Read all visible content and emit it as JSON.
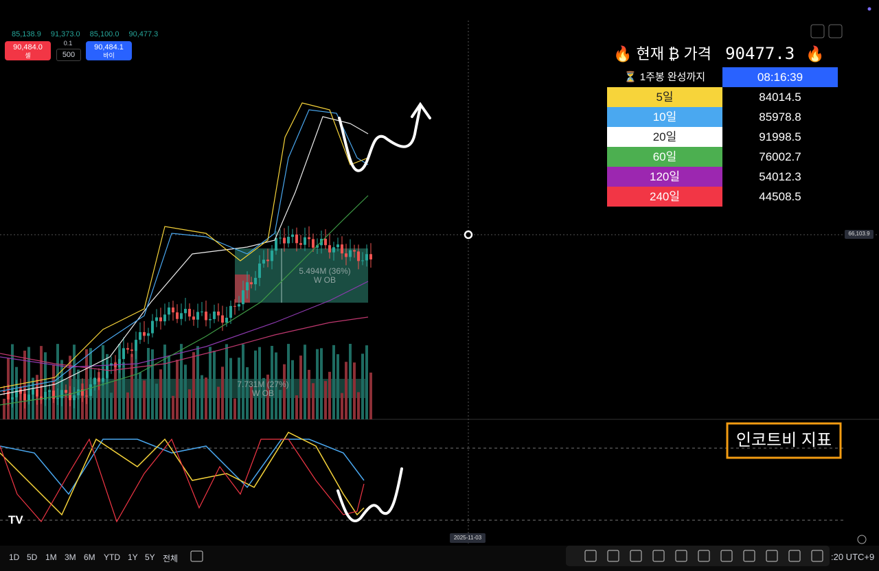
{
  "ohlc": [
    "85,138.9",
    "91,373.0",
    "85,100.0",
    "90,477.3"
  ],
  "order": {
    "sell_price": "90,484.0",
    "sell_label": "셀",
    "step": "0.1",
    "quantity": "500",
    "buy_price": "90,484.1",
    "buy_label": "바이"
  },
  "info_table": {
    "title": "🔥 현재 ₿ 가격",
    "price": "90477.3",
    "title_icon": "🔥",
    "countdown_label": "⏳ 1주봉 완성까지",
    "countdown": "08:16:39",
    "rows": [
      {
        "label": "5일",
        "value": "84014.5",
        "color": "#f7d43a"
      },
      {
        "label": "10일",
        "value": "85978.8",
        "color": "#4aa8f0"
      },
      {
        "label": "20일",
        "value": "91998.5",
        "color": "#ffffff"
      },
      {
        "label": "60일",
        "value": "76002.7",
        "color": "#4caf50"
      },
      {
        "label": "120일",
        "value": "54012.3",
        "color": "#9c27b0"
      },
      {
        "label": "240일",
        "value": "44508.5",
        "color": "#f23645"
      }
    ]
  },
  "crosshair_price": "66,103.9",
  "order_blocks": [
    {
      "size": "5.494M (36%)",
      "label": "W OB"
    },
    {
      "size": "7.731M (27%)",
      "label": "W OB"
    }
  ],
  "indicator_label": "인코트비 지표",
  "crosshair_date": "2025-11-03",
  "timeframes": [
    "1D",
    "5D",
    "1M",
    "3M",
    "6M",
    "YTD",
    "1Y",
    "5Y",
    "전체"
  ],
  "timezone": ":20 UTC+9"
}
